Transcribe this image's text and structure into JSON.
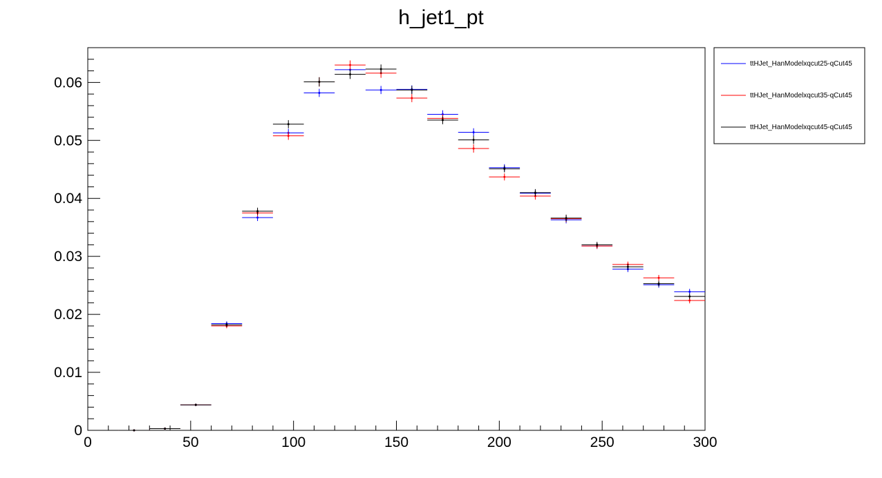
{
  "chart_data": {
    "type": "scatter",
    "title": "h_jet1_pt",
    "xlabel": "",
    "ylabel": "",
    "xlim": [
      0,
      300
    ],
    "ylim": [
      0,
      0.066
    ],
    "x_ticks": [
      0,
      50,
      100,
      150,
      200,
      250,
      300
    ],
    "y_ticks": [
      0,
      0.01,
      0.02,
      0.03,
      0.04,
      0.05,
      0.06
    ],
    "x_tick_labels": [
      "0",
      "50",
      "100",
      "150",
      "200",
      "250",
      "300"
    ],
    "y_tick_labels": [
      "0",
      "0.01",
      "0.02",
      "0.03",
      "0.04",
      "0.05",
      "0.06"
    ],
    "bin_width": 15,
    "grid": false,
    "legend_position": "top-right, outside plot",
    "series": [
      {
        "name": "ttHJet_HanModelxqcut25-qCut45",
        "color": "#0000ff",
        "x": [
          22.5,
          37.5,
          52.5,
          67.5,
          82.5,
          97.5,
          112.5,
          127.5,
          142.5,
          157.5,
          172.5,
          187.5,
          202.5,
          217.5,
          232.5,
          247.5,
          262.5,
          277.5,
          292.5
        ],
        "y": [
          0.0,
          0.0003,
          0.0044,
          0.0184,
          0.0367,
          0.0513,
          0.0582,
          0.0622,
          0.0587,
          0.0588,
          0.0545,
          0.0514,
          0.0453,
          0.0409,
          0.0363,
          0.0318,
          0.0278,
          0.0251,
          0.0239
        ],
        "err": [
          0.0,
          0.0001,
          0.0002,
          0.0004,
          0.0006,
          0.0007,
          0.0007,
          0.0008,
          0.0007,
          0.0007,
          0.0007,
          0.0007,
          0.0006,
          0.0006,
          0.0006,
          0.0005,
          0.0005,
          0.0005,
          0.0005
        ]
      },
      {
        "name": "ttHJet_HanModelxqcut35-qCut45",
        "color": "#ff0000",
        "x": [
          22.5,
          37.5,
          52.5,
          67.5,
          82.5,
          97.5,
          112.5,
          127.5,
          142.5,
          157.5,
          172.5,
          187.5,
          202.5,
          217.5,
          232.5,
          247.5,
          262.5,
          277.5,
          292.5
        ],
        "y": [
          0.0,
          0.0003,
          0.0044,
          0.018,
          0.0375,
          0.0508,
          0.0601,
          0.063,
          0.0616,
          0.0573,
          0.0538,
          0.0486,
          0.0437,
          0.0404,
          0.0365,
          0.0318,
          0.0286,
          0.0263,
          0.0224
        ],
        "err": [
          0.0,
          0.0001,
          0.0002,
          0.0004,
          0.0006,
          0.0007,
          0.0008,
          0.0008,
          0.0008,
          0.0007,
          0.0007,
          0.0007,
          0.0006,
          0.0006,
          0.0006,
          0.0005,
          0.0005,
          0.0005,
          0.0005
        ]
      },
      {
        "name": "ttHJet_HanModelxqcut45-qCut45",
        "color": "#000000",
        "x": [
          22.5,
          37.5,
          52.5,
          67.5,
          82.5,
          97.5,
          112.5,
          127.5,
          142.5,
          157.5,
          172.5,
          187.5,
          202.5,
          217.5,
          232.5,
          247.5,
          262.5,
          277.5,
          292.5
        ],
        "y": [
          0.0,
          0.0003,
          0.0044,
          0.0182,
          0.0378,
          0.0528,
          0.0601,
          0.0614,
          0.0623,
          0.0587,
          0.0535,
          0.0501,
          0.0451,
          0.041,
          0.0366,
          0.032,
          0.0282,
          0.0253,
          0.0231
        ],
        "err": [
          0.0,
          0.0001,
          0.0002,
          0.0004,
          0.0006,
          0.0007,
          0.0008,
          0.0008,
          0.0008,
          0.0007,
          0.0007,
          0.0007,
          0.0006,
          0.0006,
          0.0006,
          0.0005,
          0.0005,
          0.0005,
          0.0005
        ]
      }
    ]
  }
}
